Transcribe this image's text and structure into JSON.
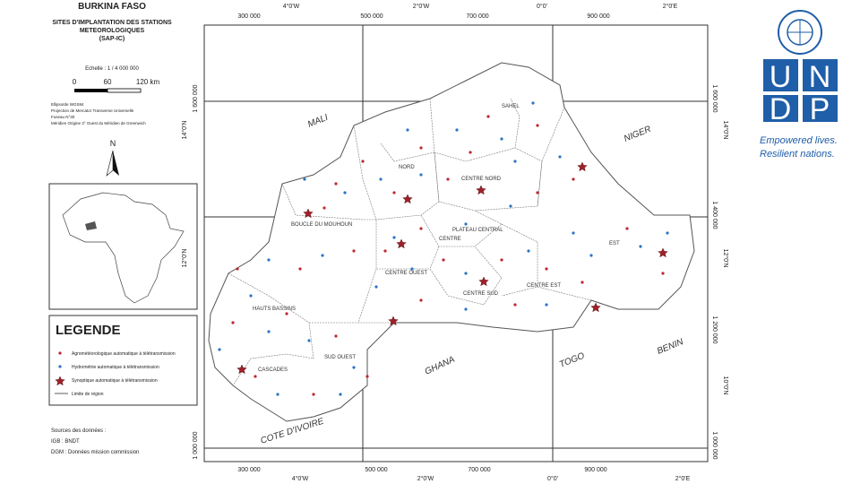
{
  "title": {
    "country": "BURKINA FASO",
    "subtitle": [
      "SITES D'IMPLANTATION DES STATIONS",
      "METEOROLOGIQUES",
      "(SAP-IC)"
    ]
  },
  "scale": {
    "label": "Echelle : 1 / 4 000 000",
    "ticks": [
      "0",
      "60",
      "120 km"
    ]
  },
  "projection": [
    "Ellipsoïde WGS84",
    "Projection de Mercator Transverse Universelle",
    "Fuseau N°30",
    "Méridien Origine 3° Ouest du Méridien de Greenwich"
  ],
  "north": "N",
  "legend": {
    "title": "LEGENDE",
    "items": [
      "Agrométéorologique automatique à télétransmission",
      "Hydrométrie automatique à télétransmission",
      "Synoptique automatique à télétransmission",
      "Limite de région"
    ]
  },
  "sources": [
    "Sources des données :",
    "IGB : BNDT",
    "DGM : Données mission commission"
  ],
  "map": {
    "top_labels": [
      "300 000",
      "4°0'W",
      "500 000",
      "2°0'W",
      "700 000",
      "0°0'",
      "900 000",
      "2°0'E"
    ],
    "bottom_labels": [
      "300 000",
      "4°0'W",
      "500 000",
      "2°0'W",
      "700 000",
      "0°0'",
      "900 000",
      "2°0'E"
    ],
    "left_labels": [
      "1 600 000",
      "14°0'N",
      "12°0'N",
      "1 000 000"
    ],
    "right_labels": [
      "1 600 000",
      "14°0'N",
      "1 400 000",
      "12°0'N",
      "1 200 000",
      "10°0'N",
      "1 000 000"
    ],
    "countries": [
      "MALI",
      "NIGER",
      "GHANA",
      "TOGO",
      "BENIN",
      "COTE D'IVOIRE"
    ],
    "regions": [
      "SAHEL",
      "NORD",
      "CENTRE NORD",
      "BOUCLE DU MOUHOUN",
      "PLATEAU CENTRAL",
      "CENTRE",
      "EST",
      "CENTRE OUEST",
      "CENTRE SUD",
      "CENTRE EST",
      "HAUTS BASSINS",
      "SUD OUEST",
      "CASCADES"
    ]
  },
  "logo": {
    "letters": [
      "U",
      "N",
      "D",
      "P"
    ],
    "tagline": [
      "Empowered lives.",
      "Resilient nations."
    ]
  }
}
